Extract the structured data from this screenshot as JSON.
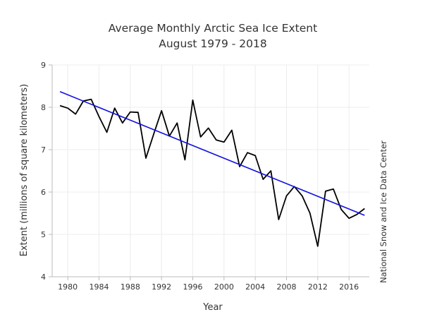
{
  "chart_data": {
    "type": "line",
    "title": "Average Monthly Arctic Sea Ice Extent",
    "subtitle": "August 1979 - 2018",
    "xlabel": "Year",
    "ylabel": "Extent (millions of square kilometers)",
    "source": "National Snow and Ice Data Center",
    "xlim": [
      1978,
      2018.6
    ],
    "ylim": [
      4,
      9
    ],
    "xticks": [
      1980,
      1984,
      1988,
      1992,
      1996,
      2000,
      2004,
      2008,
      2012,
      2016
    ],
    "yticks": [
      4,
      5,
      6,
      7,
      8,
      9
    ],
    "grid": true,
    "series": [
      {
        "role": "observed",
        "color": "#000000",
        "x": [
          1979,
          1980,
          1981,
          1982,
          1983,
          1984,
          1985,
          1986,
          1987,
          1988,
          1989,
          1990,
          1991,
          1992,
          1993,
          1994,
          1995,
          1996,
          1997,
          1998,
          1999,
          2000,
          2001,
          2002,
          2003,
          2004,
          2005,
          2006,
          2007,
          2008,
          2009,
          2010,
          2011,
          2012,
          2013,
          2014,
          2015,
          2016,
          2017,
          2018
        ],
        "values": [
          8.04,
          7.98,
          7.84,
          8.15,
          8.19,
          7.78,
          7.41,
          7.98,
          7.63,
          7.89,
          7.88,
          6.8,
          7.37,
          7.92,
          7.32,
          7.63,
          6.76,
          8.17,
          7.3,
          7.51,
          7.23,
          7.18,
          7.46,
          6.6,
          6.93,
          6.86,
          6.3,
          6.5,
          5.35,
          5.91,
          6.13,
          5.91,
          5.5,
          4.72,
          6.02,
          6.07,
          5.59,
          5.38,
          5.47,
          5.61
        ]
      },
      {
        "role": "trend",
        "color": "#1010e0",
        "x": [
          1979,
          2018
        ],
        "values": [
          8.37,
          5.45
        ]
      }
    ]
  }
}
